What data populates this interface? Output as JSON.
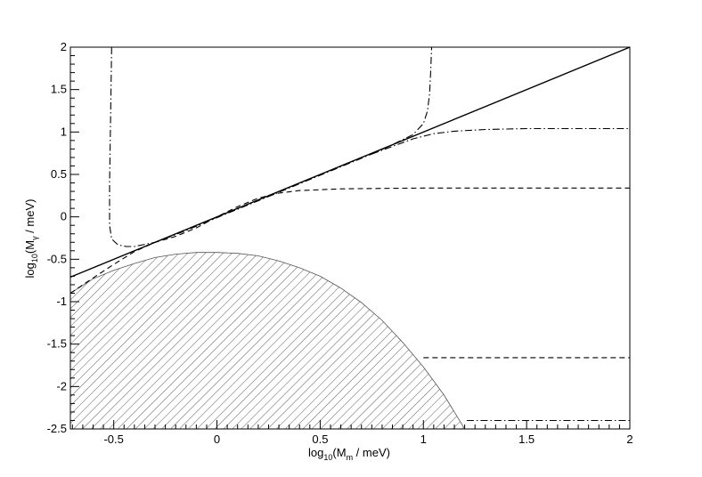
{
  "chart_data": {
    "type": "line",
    "title": "",
    "xlabel": {
      "base": "log",
      "sub": "10",
      "mid": "(M",
      "sub2": "m",
      "end": " / meV)"
    },
    "ylabel": {
      "base": "log",
      "sub": "10",
      "mid": "(M",
      "sub2": "γ",
      "end": " / meV)"
    },
    "xlim": [
      -0.71,
      2.0
    ],
    "ylim": [
      -2.5,
      2.0
    ],
    "grid": false,
    "xticks": [
      "-0.5",
      "0",
      "0.5",
      "1",
      "1.5",
      "2"
    ],
    "xtick_values": [
      -0.5,
      0,
      0.5,
      1,
      1.5,
      2
    ],
    "yticks": [
      "2",
      "1.5",
      "1",
      "0.5",
      "0",
      "-0.5",
      "-1",
      "-1.5",
      "-2",
      "-2.5"
    ],
    "ytick_values": [
      2,
      1.5,
      1,
      0.5,
      0,
      -0.5,
      -1,
      -1.5,
      -2,
      -2.5
    ],
    "series": [
      {
        "style": "solid",
        "x": [
          -0.71,
          2.0
        ],
        "y": [
          -0.71,
          2.0
        ]
      },
      {
        "style": "dashed",
        "x": [
          -0.71,
          -0.6,
          -0.5,
          -0.4,
          -0.3,
          -0.2,
          -0.1,
          0.0,
          0.1,
          0.2,
          0.3,
          0.4,
          0.5,
          0.6,
          0.8,
          1.0,
          1.2,
          1.4,
          1.6,
          1.8,
          2.0
        ],
        "y": [
          -0.9,
          -0.72,
          -0.56,
          -0.41,
          -0.3,
          -0.23,
          -0.13,
          0.0,
          0.12,
          0.22,
          0.28,
          0.31,
          0.32,
          0.33,
          0.335,
          0.34,
          0.34,
          0.34,
          0.34,
          0.34,
          0.34
        ]
      },
      {
        "style": "dashed",
        "x": [
          1.0,
          2.0
        ],
        "y": [
          -1.66,
          -1.66
        ]
      },
      {
        "style": "dashdot",
        "x": [
          -0.51,
          -0.515,
          -0.52,
          -0.52,
          -0.51,
          -0.48,
          -0.44,
          -0.4,
          -0.3,
          -0.2,
          -0.1,
          0.0,
          0.2,
          0.4,
          0.6,
          0.75,
          0.85,
          0.95,
          1.0,
          1.02,
          1.03,
          1.035,
          1.04
        ],
        "y": [
          2.0,
          1.2,
          0.4,
          -0.1,
          -0.26,
          -0.33,
          -0.35,
          -0.35,
          -0.3,
          -0.21,
          -0.11,
          -0.01,
          0.19,
          0.39,
          0.59,
          0.74,
          0.85,
          0.97,
          1.1,
          1.25,
          1.45,
          1.7,
          2.0
        ]
      },
      {
        "style": "dashdot",
        "x": [
          0.75,
          0.85,
          0.95,
          1.05,
          1.15,
          1.3,
          1.5,
          1.75,
          2.0
        ],
        "y": [
          0.74,
          0.83,
          0.92,
          0.98,
          1.01,
          1.03,
          1.04,
          1.04,
          1.04
        ]
      },
      {
        "style": "dashdot",
        "x": [
          1.21,
          2.0
        ],
        "y": [
          -2.4,
          -2.4
        ]
      }
    ],
    "excluded_region": {
      "pattern": "hatched",
      "x": [
        -0.71,
        -0.6,
        -0.5,
        -0.4,
        -0.3,
        -0.2,
        -0.1,
        0.0,
        0.1,
        0.2,
        0.3,
        0.4,
        0.5,
        0.6,
        0.7,
        0.8,
        0.9,
        1.0,
        1.1,
        1.2
      ],
      "y": [
        -0.9,
        -0.73,
        -0.63,
        -0.55,
        -0.48,
        -0.44,
        -0.42,
        -0.42,
        -0.43,
        -0.46,
        -0.52,
        -0.6,
        -0.7,
        -0.84,
        -1.01,
        -1.22,
        -1.48,
        -1.77,
        -2.1,
        -2.5
      ]
    }
  }
}
